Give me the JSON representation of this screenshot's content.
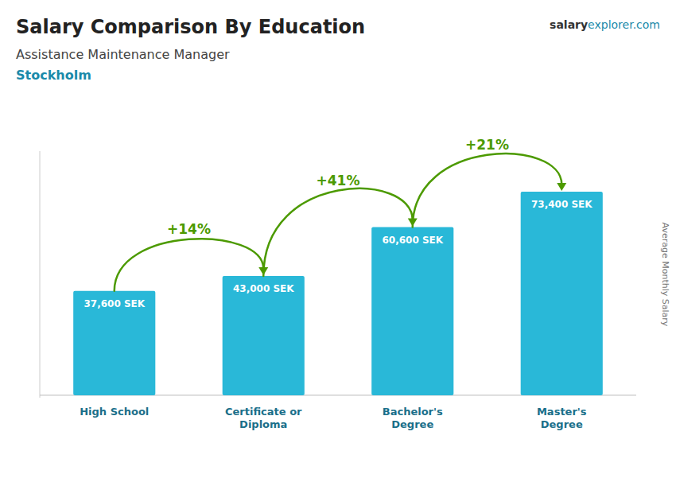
{
  "chart_data": {
    "type": "bar",
    "title": "Salary Comparison By Education",
    "subtitle": "Assistance Maintenance Manager",
    "location": "Stockholm",
    "watermark": [
      "salary",
      "explorer.com"
    ],
    "ylabel": "Average Monthly Salary",
    "categories": [
      "High School",
      "Certificate or\nDiploma",
      "Bachelor's\nDegree",
      "Master's\nDegree"
    ],
    "values": [
      37600,
      43000,
      60600,
      73400
    ],
    "value_labels": [
      "37,600 SEK",
      "43,000 SEK",
      "60,600 SEK",
      "73,400 SEK"
    ],
    "data_labels": true,
    "change_labels": [
      "+14%",
      "+41%",
      "+21%"
    ],
    "color": "#29b8d8",
    "ylim": [
      -880,
      88000
    ],
    "tick_labels": false
  }
}
